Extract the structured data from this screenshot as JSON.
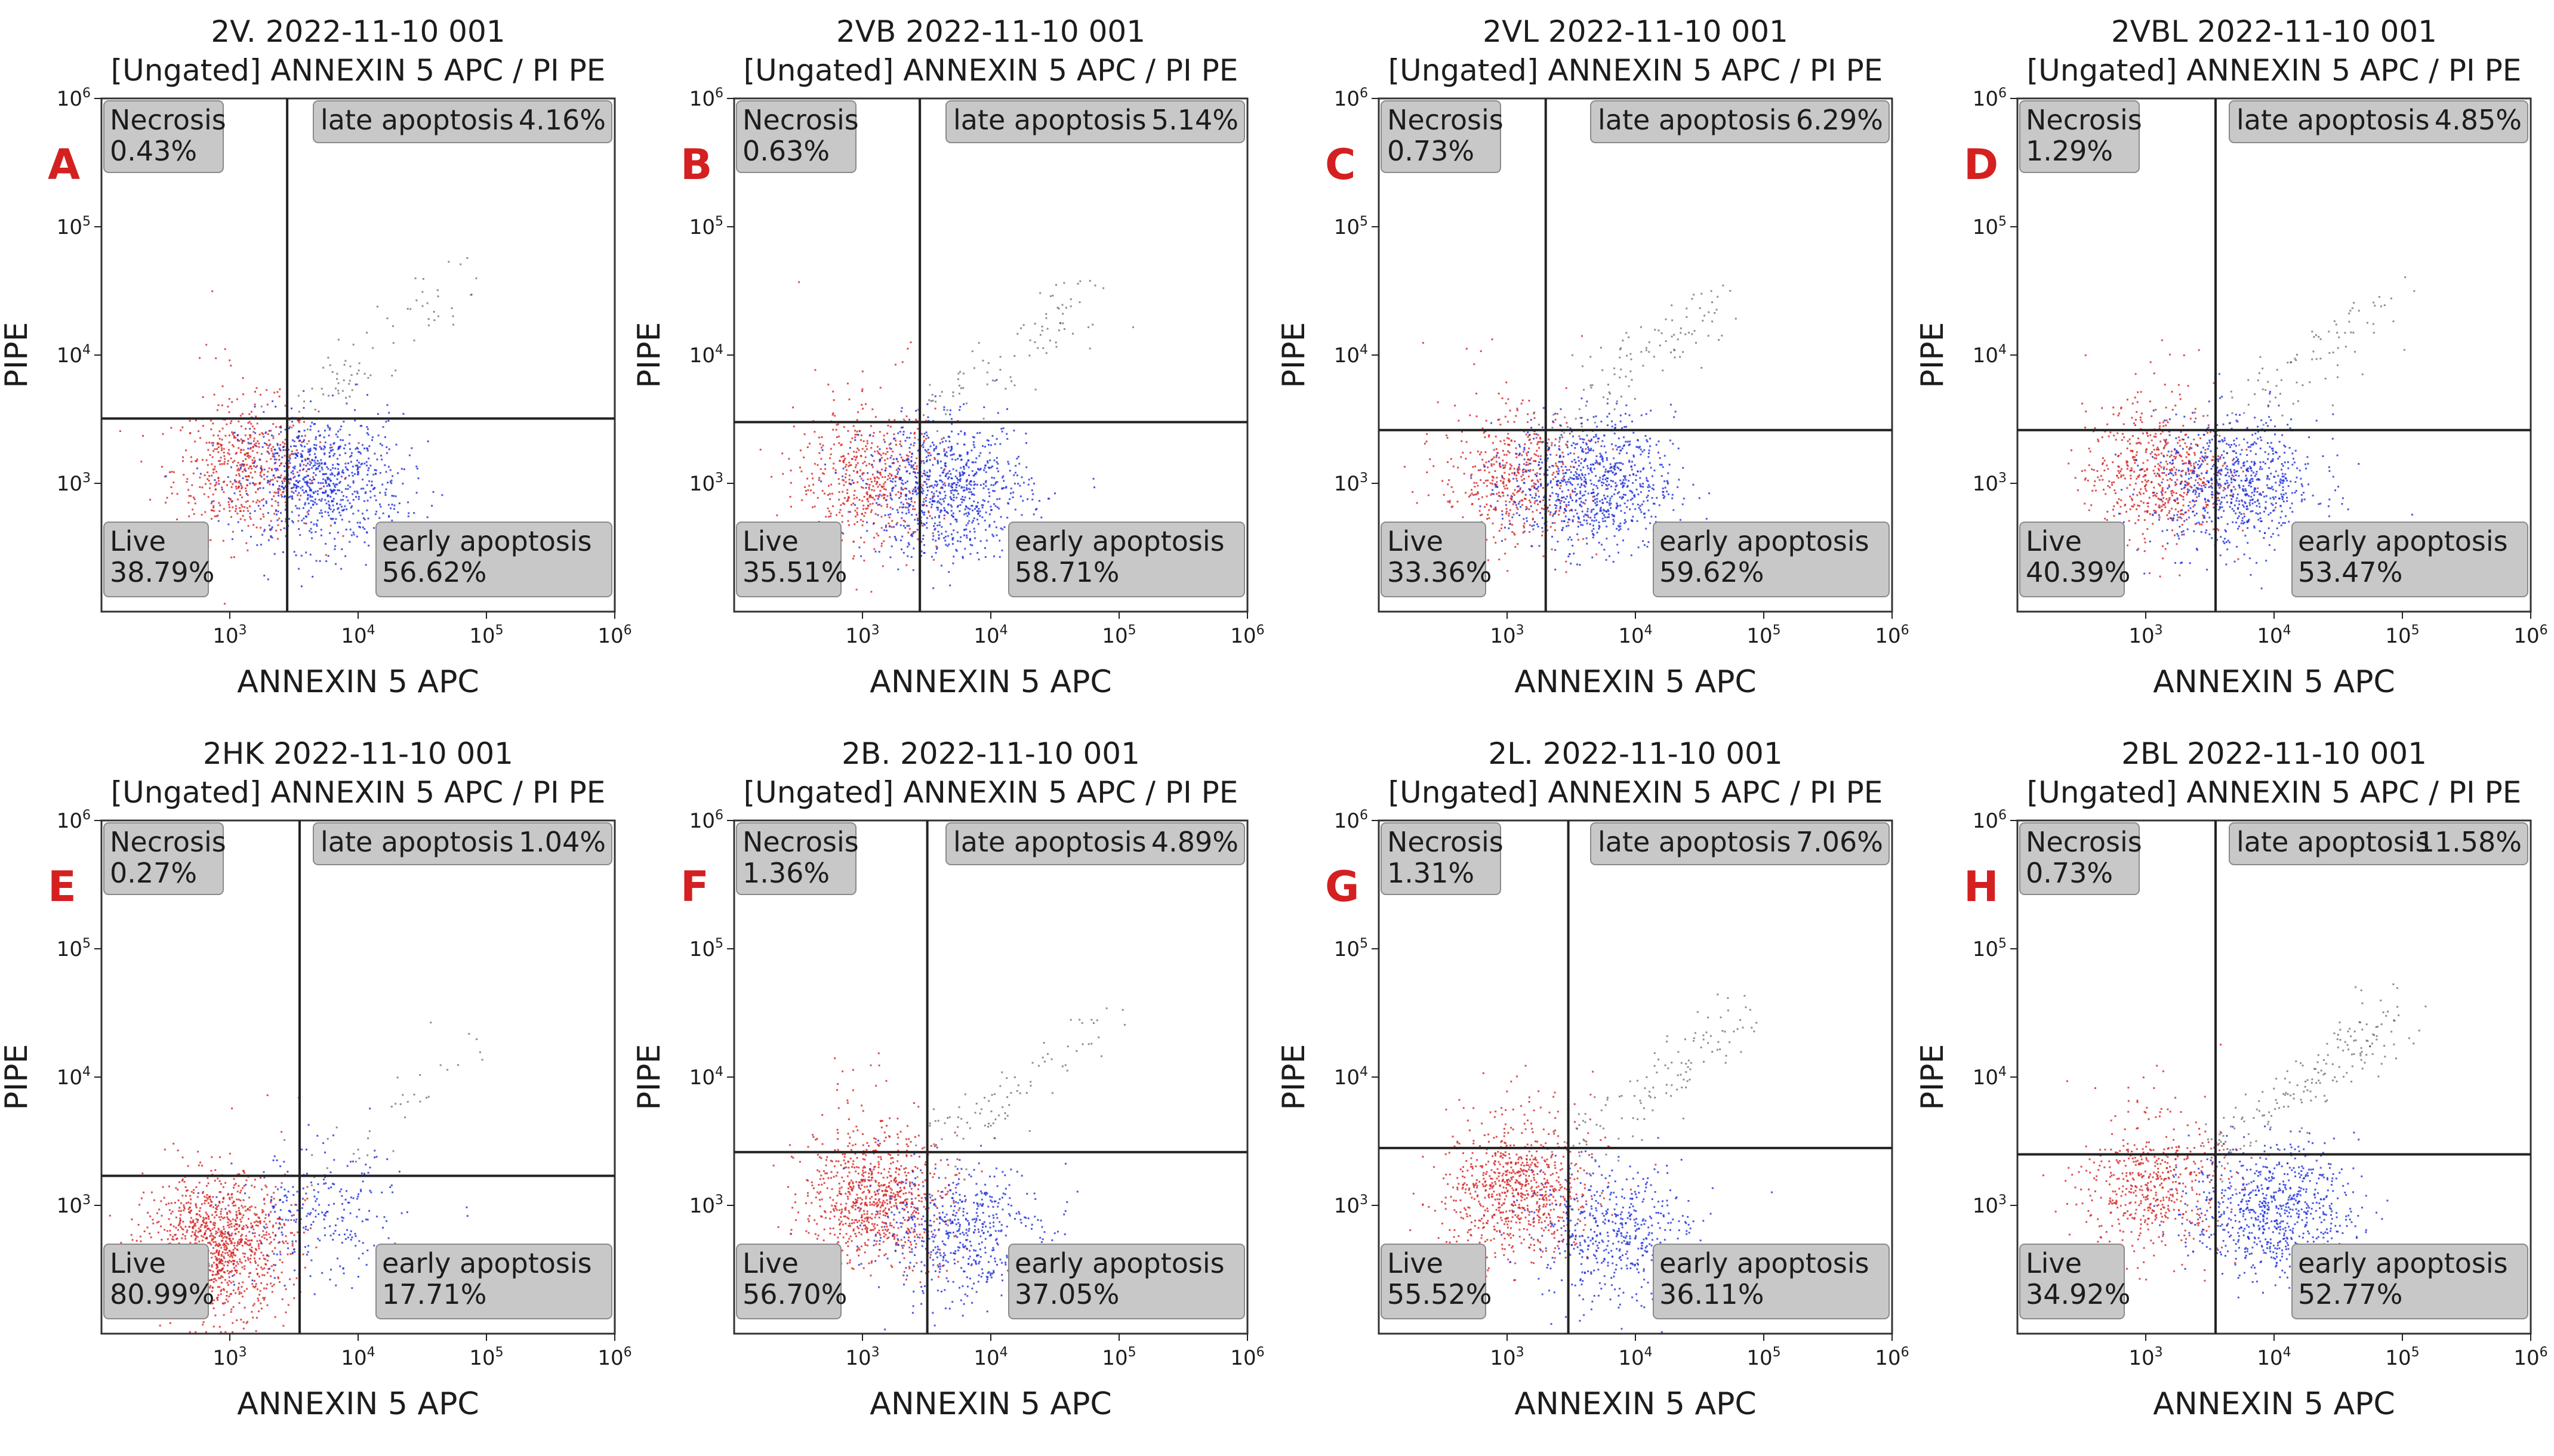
{
  "figure": {
    "letter_color": "#d42020",
    "live_color": "#d42323",
    "apoptotic_color": "#1e2ed8",
    "late_color": "#333333",
    "frame_color": "#333333",
    "quadrant_box_color": "#c8c8c8"
  },
  "chart_data": [
    {
      "type": "scatter",
      "panel": "A",
      "title": "2V. 2022-11-10 001",
      "subtitle": "[Ungated] ANNEXIN 5 APC / PI PE",
      "xlabel": "ANNEXIN 5 APC",
      "ylabel": "PIPE",
      "xscale": "log",
      "yscale": "log",
      "xticks": [
        "10",
        "10",
        "10",
        "10"
      ],
      "xtick_exps": [
        "3",
        "4",
        "5",
        "6"
      ],
      "yticks": [
        "10",
        "10",
        "10",
        "10"
      ],
      "ytick_exps": [
        "3",
        "4",
        "5",
        "6"
      ],
      "gate": {
        "x": 2800,
        "y": 3200
      },
      "quadrants": {
        "necrosis": {
          "label": "Necrosis",
          "value": "0.43%"
        },
        "late": {
          "label": "late apoptosis",
          "value": "4.16%"
        },
        "live": {
          "label": "Live",
          "value": "38.79%"
        },
        "early": {
          "label": "early apoptosis",
          "value": "56.62%"
        }
      },
      "clusters": {
        "live": {
          "x": 1300,
          "y": 1300
        },
        "early": {
          "x": 5000,
          "y": 1050
        }
      }
    },
    {
      "type": "scatter",
      "panel": "B",
      "title": "2VB 2022-11-10 001",
      "subtitle": "[Ungated] ANNEXIN 5 APC / PI PE",
      "xlabel": "ANNEXIN 5 APC",
      "ylabel": "PIPE",
      "xscale": "log",
      "yscale": "log",
      "xticks": [
        "10",
        "10",
        "10",
        "10"
      ],
      "xtick_exps": [
        "3",
        "4",
        "5",
        "6"
      ],
      "yticks": [
        "10",
        "10",
        "10",
        "10"
      ],
      "ytick_exps": [
        "3",
        "4",
        "5",
        "6"
      ],
      "gate": {
        "x": 2800,
        "y": 3000
      },
      "quadrants": {
        "necrosis": {
          "label": "Necrosis",
          "value": "0.63%"
        },
        "late": {
          "label": "late apoptosis",
          "value": "5.14%"
        },
        "live": {
          "label": "Live",
          "value": "35.51%"
        },
        "early": {
          "label": "early apoptosis",
          "value": "58.71%"
        }
      },
      "clusters": {
        "live": {
          "x": 1100,
          "y": 1100
        },
        "early": {
          "x": 4500,
          "y": 900
        }
      }
    },
    {
      "type": "scatter",
      "panel": "C",
      "title": "2VL 2022-11-10 001",
      "subtitle": "[Ungated] ANNEXIN 5 APC / PI PE",
      "xlabel": "ANNEXIN 5 APC",
      "ylabel": "PIPE",
      "xscale": "log",
      "yscale": "log",
      "xticks": [
        "10",
        "10",
        "10",
        "10"
      ],
      "xtick_exps": [
        "3",
        "4",
        "5",
        "6"
      ],
      "yticks": [
        "10",
        "10",
        "10",
        "10"
      ],
      "ytick_exps": [
        "3",
        "4",
        "5",
        "6"
      ],
      "gate": {
        "x": 2000,
        "y": 2600
      },
      "quadrants": {
        "necrosis": {
          "label": "Necrosis",
          "value": "0.73%"
        },
        "late": {
          "label": "late apoptosis",
          "value": "6.29%"
        },
        "live": {
          "label": "Live",
          "value": "33.36%"
        },
        "early": {
          "label": "early apoptosis",
          "value": "59.62%"
        }
      },
      "clusters": {
        "live": {
          "x": 1100,
          "y": 1100
        },
        "early": {
          "x": 4500,
          "y": 1000
        }
      }
    },
    {
      "type": "scatter",
      "panel": "D",
      "title": "2VBL 2022-11-10 001",
      "subtitle": "[Ungated] ANNEXIN 5 APC / PI PE",
      "xlabel": "ANNEXIN 5 APC",
      "ylabel": "PIPE",
      "xscale": "log",
      "yscale": "log",
      "xticks": [
        "10",
        "10",
        "10",
        "10"
      ],
      "xtick_exps": [
        "3",
        "4",
        "5",
        "6"
      ],
      "yticks": [
        "10",
        "10",
        "10",
        "10"
      ],
      "ytick_exps": [
        "3",
        "4",
        "5",
        "6"
      ],
      "gate": {
        "x": 3500,
        "y": 2600
      },
      "quadrants": {
        "necrosis": {
          "label": "Necrosis",
          "value": "1.29%"
        },
        "late": {
          "label": "late apoptosis",
          "value": "4.85%"
        },
        "live": {
          "label": "Live",
          "value": "40.39%"
        },
        "early": {
          "label": "early apoptosis",
          "value": "53.47%"
        }
      },
      "clusters": {
        "live": {
          "x": 1200,
          "y": 1200
        },
        "early": {
          "x": 5000,
          "y": 1000
        }
      }
    },
    {
      "type": "scatter",
      "panel": "E",
      "title": "2HK 2022-11-10 001",
      "subtitle": "[Ungated] ANNEXIN 5 APC / PI PE",
      "xlabel": "ANNEXIN 5 APC",
      "ylabel": "PIPE",
      "xscale": "log",
      "yscale": "log",
      "xticks": [
        "10",
        "10",
        "10",
        "10"
      ],
      "xtick_exps": [
        "3",
        "4",
        "5",
        "6"
      ],
      "yticks": [
        "10",
        "10",
        "10",
        "10"
      ],
      "ytick_exps": [
        "3",
        "4",
        "5",
        "6"
      ],
      "gate": {
        "x": 3500,
        "y": 1700
      },
      "quadrants": {
        "necrosis": {
          "label": "Necrosis",
          "value": "0.27%"
        },
        "late": {
          "label": "late apoptosis",
          "value": "1.04%"
        },
        "live": {
          "label": "Live",
          "value": "80.99%"
        },
        "early": {
          "label": "early apoptosis",
          "value": "17.71%"
        }
      },
      "clusters": {
        "live": {
          "x": 800,
          "y": 500
        },
        "early": {
          "x": 5000,
          "y": 800
        }
      }
    },
    {
      "type": "scatter",
      "panel": "F",
      "title": "2B. 2022-11-10 001",
      "subtitle": "[Ungated] ANNEXIN 5 APC / PI PE",
      "xlabel": "ANNEXIN 5 APC",
      "ylabel": "PIPE",
      "xscale": "log",
      "yscale": "log",
      "xticks": [
        "10",
        "10",
        "10",
        "10"
      ],
      "xtick_exps": [
        "3",
        "4",
        "5",
        "6"
      ],
      "yticks": [
        "10",
        "10",
        "10",
        "10"
      ],
      "ytick_exps": [
        "3",
        "4",
        "5",
        "6"
      ],
      "gate": {
        "x": 3200,
        "y": 2600
      },
      "quadrants": {
        "necrosis": {
          "label": "Necrosis",
          "value": "1.36%"
        },
        "late": {
          "label": "late apoptosis",
          "value": "4.89%"
        },
        "live": {
          "label": "Live",
          "value": "56.70%"
        },
        "early": {
          "label": "early apoptosis",
          "value": "37.05%"
        }
      },
      "clusters": {
        "live": {
          "x": 1200,
          "y": 1200
        },
        "early": {
          "x": 6000,
          "y": 600
        }
      }
    },
    {
      "type": "scatter",
      "panel": "G",
      "title": "2L. 2022-11-10 001",
      "subtitle": "[Ungated] ANNEXIN 5 APC / PI PE",
      "xlabel": "ANNEXIN 5 APC",
      "ylabel": "PIPE",
      "xscale": "log",
      "yscale": "log",
      "xticks": [
        "10",
        "10",
        "10",
        "10"
      ],
      "xtick_exps": [
        "3",
        "4",
        "5",
        "6"
      ],
      "yticks": [
        "10",
        "10",
        "10",
        "10"
      ],
      "ytick_exps": [
        "3",
        "4",
        "5",
        "6"
      ],
      "gate": {
        "x": 3000,
        "y": 2800
      },
      "quadrants": {
        "necrosis": {
          "label": "Necrosis",
          "value": "1.31%"
        },
        "late": {
          "label": "late apoptosis",
          "value": "7.06%"
        },
        "live": {
          "label": "Live",
          "value": "55.52%"
        },
        "early": {
          "label": "early apoptosis",
          "value": "36.11%"
        }
      },
      "clusters": {
        "live": {
          "x": 1200,
          "y": 1300
        },
        "early": {
          "x": 7000,
          "y": 600
        }
      }
    },
    {
      "type": "scatter",
      "panel": "H",
      "title": "2BL 2022-11-10 001",
      "subtitle": "[Ungated] ANNEXIN 5 APC / PI PE",
      "xlabel": "ANNEXIN 5 APC",
      "ylabel": "PIPE",
      "xscale": "log",
      "yscale": "log",
      "xticks": [
        "10",
        "10",
        "10",
        "10"
      ],
      "xtick_exps": [
        "3",
        "4",
        "5",
        "6"
      ],
      "yticks": [
        "10",
        "10",
        "10",
        "10"
      ],
      "ytick_exps": [
        "3",
        "4",
        "5",
        "6"
      ],
      "gate": {
        "x": 3500,
        "y": 2500
      },
      "quadrants": {
        "necrosis": {
          "label": "Necrosis",
          "value": "0.73%"
        },
        "late": {
          "label": "late apoptosis",
          "value": "11.58%"
        },
        "live": {
          "label": "Live",
          "value": "34.92%"
        },
        "early": {
          "label": "early apoptosis",
          "value": "52.77%"
        }
      },
      "clusters": {
        "live": {
          "x": 1100,
          "y": 1400
        },
        "early": {
          "x": 10000,
          "y": 900
        }
      }
    }
  ]
}
